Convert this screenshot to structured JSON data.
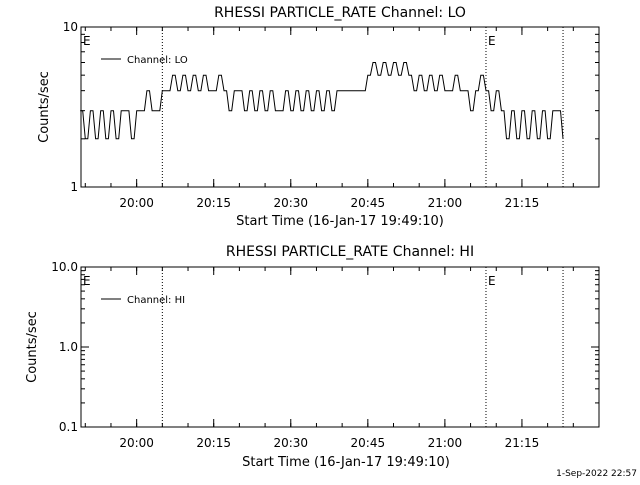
{
  "stamp": "1-Sep-2022 22:57",
  "chart_data": [
    {
      "type": "line",
      "title": "RHESSI PARTICLE_RATE Channel: LO",
      "xlabel": "Start Time (16-Jan-17 19:49:10)",
      "ylabel": "Counts/sec",
      "xlim": [
        "19:49:10",
        "21:30:00"
      ],
      "ylim": [
        1,
        10
      ],
      "yscale": "log",
      "yticks": [
        {
          "v": 1,
          "label": "1"
        },
        {
          "v": 10,
          "label": "10"
        }
      ],
      "xticks": [
        "20:00",
        "20:15",
        "20:30",
        "20:45",
        "21:00",
        "21:15"
      ],
      "grid": false,
      "legend_position": "top-left",
      "vlines": [
        "20:05",
        "21:08",
        "21:23"
      ],
      "markers": [
        {
          "t": "19:49",
          "label": "E"
        },
        {
          "t": "21:08",
          "label": "E"
        }
      ],
      "series": [
        {
          "name": "Channel: LO",
          "x": [
            "19:49",
            "19:50",
            "19:51",
            "19:52",
            "19:53",
            "19:54",
            "19:55",
            "19:56",
            "19:57",
            "19:58",
            "19:59",
            "20:00",
            "20:01",
            "20:02",
            "20:03",
            "20:04",
            "20:05",
            "20:06",
            "20:07",
            "20:08",
            "20:09",
            "20:10",
            "20:11",
            "20:12",
            "20:13",
            "20:14",
            "20:15",
            "20:16",
            "20:17",
            "20:18",
            "20:19",
            "20:20",
            "20:21",
            "20:22",
            "20:23",
            "20:24",
            "20:25",
            "20:26",
            "20:27",
            "20:28",
            "20:29",
            "20:30",
            "20:31",
            "20:32",
            "20:33",
            "20:34",
            "20:35",
            "20:36",
            "20:37",
            "20:38",
            "20:39",
            "20:40",
            "20:41",
            "20:42",
            "20:43",
            "20:44",
            "20:45",
            "20:46",
            "20:47",
            "20:48",
            "20:49",
            "20:50",
            "20:51",
            "20:52",
            "20:53",
            "20:54",
            "20:55",
            "20:56",
            "20:57",
            "20:58",
            "20:59",
            "21:00",
            "21:01",
            "21:02",
            "21:03",
            "21:04",
            "21:05",
            "21:06",
            "21:07",
            "21:08",
            "21:09",
            "21:10",
            "21:11",
            "21:12",
            "21:13",
            "21:14",
            "21:15",
            "21:16",
            "21:17",
            "21:18",
            "21:19",
            "21:20",
            "21:21",
            "21:22",
            "21:23"
          ],
          "y": [
            3,
            2,
            3,
            2,
            3,
            2,
            3,
            2,
            3,
            3,
            2,
            3,
            3,
            4,
            3,
            3,
            4,
            4,
            5,
            4,
            5,
            4,
            5,
            4,
            5,
            4,
            4,
            5,
            4,
            3,
            4,
            4,
            3,
            4,
            3,
            4,
            3,
            4,
            3,
            3,
            4,
            3,
            4,
            3,
            4,
            3,
            4,
            3,
            4,
            3,
            4,
            4,
            4,
            4,
            4,
            4,
            5,
            6,
            5,
            6,
            5,
            6,
            5,
            6,
            5,
            4,
            5,
            4,
            5,
            4,
            5,
            4,
            4,
            5,
            4,
            4,
            3,
            4,
            5,
            4,
            3,
            4,
            3,
            2,
            3,
            2,
            3,
            2,
            3,
            2,
            3,
            2,
            3,
            3,
            2
          ]
        }
      ]
    },
    {
      "type": "line",
      "title": "RHESSI PARTICLE_RATE Channel: HI",
      "xlabel": "Start Time (16-Jan-17 19:49:10)",
      "ylabel": "Counts/sec",
      "xlim": [
        "19:49:10",
        "21:30:00"
      ],
      "ylim": [
        0.1,
        10
      ],
      "yscale": "log",
      "yticks": [
        {
          "v": 0.1,
          "label": "0.1"
        },
        {
          "v": 1,
          "label": "1.0"
        },
        {
          "v": 10,
          "label": "10.0"
        }
      ],
      "xticks": [
        "20:00",
        "20:15",
        "20:30",
        "20:45",
        "21:00",
        "21:15"
      ],
      "grid": false,
      "legend_position": "top-left",
      "vlines": [
        "20:05",
        "21:08",
        "21:23"
      ],
      "markers": [
        {
          "t": "19:49",
          "label": "E"
        },
        {
          "t": "21:08",
          "label": "E"
        }
      ],
      "series": [
        {
          "name": "Channel: HI",
          "x": [],
          "y": []
        }
      ]
    }
  ]
}
